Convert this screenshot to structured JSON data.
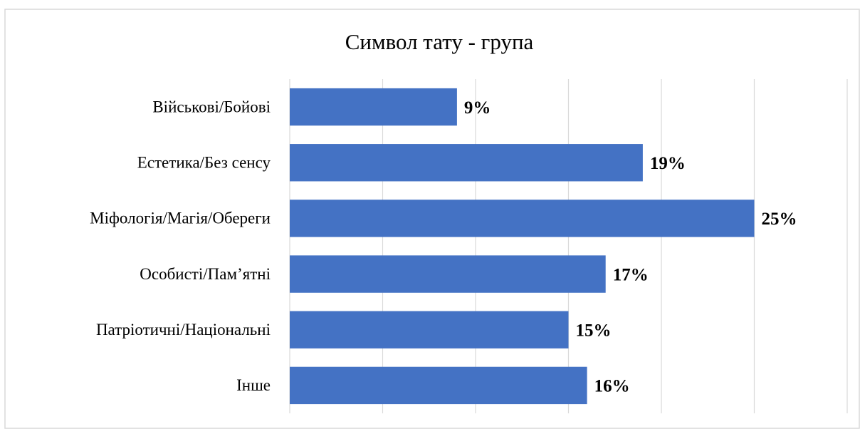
{
  "chart_data": {
    "type": "bar",
    "orientation": "horizontal",
    "title": "Символ тату - група",
    "categories": [
      "Військові/Бойові",
      "Естетика/Без сенсу",
      "Міфологія/Магія/Обереги",
      "Особисті/Пам’ятні",
      "Патріотичні/Національні",
      "Інше"
    ],
    "values": [
      9,
      19,
      25,
      17,
      15,
      16
    ],
    "value_labels": [
      "9%",
      "19%",
      "25%",
      "17%",
      "15%",
      "16%"
    ],
    "color": "#4472c4",
    "xlim": [
      0,
      30
    ],
    "xticks": [
      0,
      5,
      10,
      15,
      20,
      25,
      30
    ],
    "grid": true
  }
}
